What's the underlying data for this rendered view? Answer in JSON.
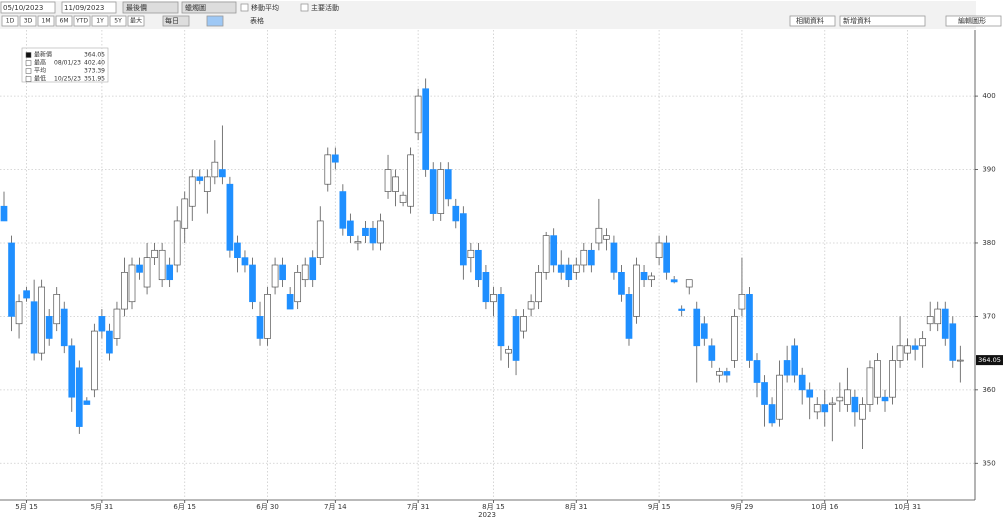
{
  "toolbar": {
    "start_date": "05/10/2023",
    "end_date": "11/09/2023",
    "field": "最後價",
    "chart_style": "蠟燭圖",
    "moving_average": "移動平均",
    "key_events": "主要活動",
    "periods": [
      "1D",
      "3D",
      "1M",
      "6M",
      "YTD",
      "1Y",
      "5Y",
      "最大"
    ],
    "frequency": "每日",
    "table": "表格",
    "related": "相關資料",
    "add_data": "新增資料",
    "edit_chart": "編輯圖形"
  },
  "chart_data": {
    "type": "candlestick",
    "x_title": "2023",
    "legend": [
      {
        "label": "最新價",
        "value": {
          "value": 364.05,
          "label": "364.05"
        }
      },
      {
        "label": "最高",
        "date": "08/01/23",
        "value": {
          "value": 402.4,
          "label": "402.40"
        }
      },
      {
        "label": "平均",
        "value": {
          "value": 373.39,
          "label": "373.39"
        }
      },
      {
        "label": "最低",
        "date": "10/25/23",
        "value": {
          "value": 351.95,
          "label": "351.95"
        }
      }
    ],
    "last_price": {
      "value": 364.05,
      "label": "364.05"
    },
    "up_color": "#ffffff",
    "down_color": "#1f8fff",
    "ylim": [
      345,
      409
    ],
    "yticks": [
      350,
      360,
      370,
      380,
      390,
      400
    ],
    "grid": true,
    "categories": [
      null,
      null,
      null,
      "5月 15",
      null,
      null,
      null,
      null,
      null,
      null,
      null,
      null,
      null,
      "5月 31",
      null,
      null,
      null,
      null,
      null,
      null,
      null,
      null,
      null,
      null,
      "6月 15",
      null,
      null,
      null,
      null,
      null,
      null,
      null,
      null,
      null,
      null,
      "6月 30",
      null,
      null,
      null,
      null,
      null,
      null,
      null,
      null,
      "7月 14",
      null,
      null,
      null,
      null,
      null,
      null,
      null,
      null,
      null,
      null,
      "7月 31",
      null,
      null,
      null,
      null,
      null,
      null,
      null,
      null,
      null,
      "8月 15",
      null,
      null,
      null,
      null,
      null,
      null,
      null,
      null,
      null,
      null,
      "8月 31",
      null,
      null,
      null,
      null,
      null,
      null,
      null,
      null,
      null,
      null,
      "9月 15",
      null,
      null,
      null,
      null,
      null,
      null,
      null,
      null,
      null,
      null,
      "9月 29",
      null,
      null,
      null,
      null,
      null,
      null,
      null,
      null,
      null,
      null,
      "10月 16",
      null,
      null,
      null,
      null,
      null,
      null,
      null,
      null,
      null,
      null,
      "10月 31",
      null,
      null,
      null,
      null,
      null,
      null,
      null
    ],
    "open": [
      385,
      380,
      369,
      373.5,
      372,
      365,
      370,
      369,
      371,
      366,
      363,
      358.5,
      360,
      370,
      368,
      367,
      371,
      372,
      377,
      374,
      378,
      375,
      377,
      377,
      382,
      385,
      389,
      387,
      389,
      390,
      388,
      380,
      378,
      377,
      370,
      367,
      374,
      377,
      373,
      372,
      375,
      378,
      378,
      388,
      392,
      387,
      383,
      380,
      382,
      382,
      380,
      387,
      387,
      385.5,
      385,
      395,
      401,
      390,
      384,
      390,
      385,
      384,
      378,
      379,
      376,
      372,
      373,
      365,
      370,
      368,
      371,
      372,
      376,
      381,
      377,
      377,
      376,
      377,
      379,
      380,
      380.5,
      380,
      376,
      373,
      370,
      376,
      375,
      378,
      380,
      375,
      371,
      374,
      371,
      369,
      366,
      362,
      362.5,
      364,
      371,
      373,
      364,
      361,
      358,
      356,
      364,
      366,
      362,
      360,
      357,
      358,
      358,
      358.5,
      358,
      359,
      356,
      358,
      359,
      359,
      359,
      364,
      365,
      366,
      366,
      369,
      369,
      371,
      369,
      364.05
    ],
    "high": [
      387,
      381,
      373,
      374,
      375,
      375,
      371,
      374,
      372,
      367,
      364,
      359,
      369,
      371,
      369,
      372,
      378,
      378,
      378,
      380,
      380,
      380,
      378,
      385,
      387,
      390,
      390,
      390,
      394,
      396,
      389,
      381,
      379,
      378,
      372,
      374,
      378,
      378,
      374,
      377,
      378,
      379,
      385,
      393,
      393,
      388,
      384,
      381,
      383,
      383,
      384,
      392,
      390,
      387,
      393,
      401,
      402.4,
      391,
      391,
      391,
      386,
      385,
      380,
      380,
      377,
      374,
      374,
      366,
      371,
      371,
      373,
      377,
      381.5,
      382,
      379,
      378,
      378,
      380,
      380,
      386,
      382,
      381,
      377,
      374,
      378,
      377,
      376,
      381,
      381,
      375.5,
      371.5,
      375,
      372,
      370,
      367,
      363,
      363,
      371,
      378,
      374,
      365,
      362,
      359,
      364,
      366,
      367,
      363,
      361,
      359,
      360,
      359,
      361,
      363,
      360,
      359,
      364,
      365,
      360,
      366,
      370,
      367,
      367,
      368,
      372,
      372,
      372,
      370,
      366
    ],
    "low": [
      383,
      368,
      367,
      372,
      364,
      364,
      366,
      368,
      365,
      357,
      354,
      358,
      359,
      367,
      364,
      366,
      370,
      371,
      375,
      373,
      377,
      374,
      374,
      376,
      380,
      383,
      388,
      384,
      388,
      388,
      378,
      376,
      376,
      371,
      366,
      366,
      373,
      374,
      371,
      371,
      374,
      374,
      377,
      387,
      390,
      381,
      380,
      379,
      380,
      379,
      379,
      386,
      385,
      385,
      384,
      394,
      389,
      383,
      383,
      385,
      382,
      375,
      376,
      374,
      371,
      370,
      364,
      363,
      362,
      367,
      370,
      371,
      375,
      376,
      375,
      374,
      375,
      376,
      376,
      379,
      379,
      375,
      372,
      366,
      369,
      374,
      374,
      377,
      375,
      374.5,
      370,
      373,
      361,
      366,
      363,
      361,
      361,
      363,
      370,
      363,
      359,
      355,
      355,
      355,
      361,
      361,
      358,
      356,
      356,
      355,
      353,
      357,
      357,
      355,
      351.95,
      357,
      358,
      357,
      358,
      363,
      364,
      364,
      363,
      368,
      368,
      366,
      363,
      361
    ],
    "close": [
      383,
      370,
      372,
      372.5,
      365,
      374,
      367,
      373,
      366,
      359,
      355,
      358,
      368,
      368,
      365,
      371,
      376,
      377,
      376,
      378,
      379,
      379,
      375,
      383,
      386,
      389,
      388.5,
      389,
      391,
      389,
      379,
      378,
      377,
      372,
      367,
      373,
      377,
      375,
      371,
      376,
      377,
      375,
      383,
      392,
      391,
      382,
      381,
      380.2,
      381,
      380,
      383,
      390,
      389,
      386.5,
      392,
      400,
      390,
      384,
      390,
      386,
      383,
      377,
      379,
      375,
      372,
      373,
      366,
      365.5,
      364,
      370,
      372,
      376,
      381,
      377,
      376,
      375,
      377,
      379,
      377,
      382,
      381,
      376,
      373,
      367,
      377,
      375,
      375.5,
      380,
      376,
      374.7,
      370.8,
      375,
      366,
      367,
      364,
      362.5,
      362,
      370,
      373,
      364,
      361,
      358,
      355.5,
      362,
      362,
      362,
      360,
      359,
      358,
      357,
      358.2,
      359,
      360,
      357,
      358,
      363,
      364,
      358.5,
      364,
      366,
      366,
      365.5,
      367,
      370,
      371,
      367,
      364,
      364.05
    ]
  }
}
